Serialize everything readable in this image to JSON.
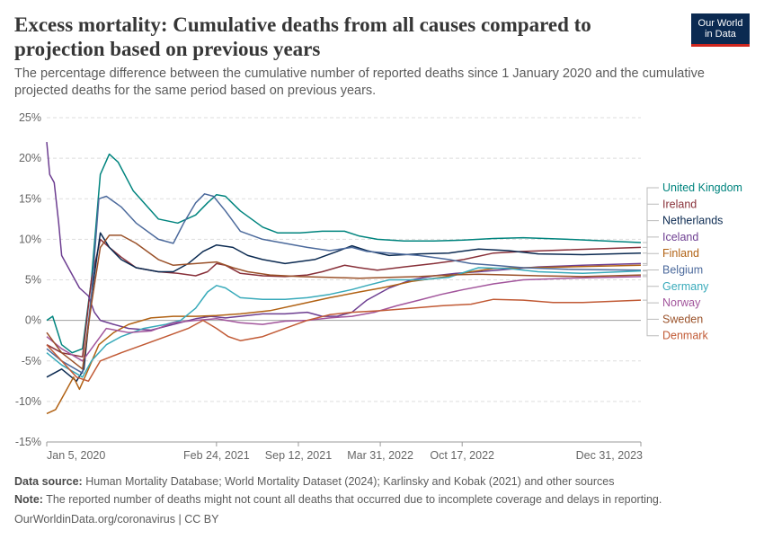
{
  "header": {
    "title": "Excess mortality: Cumulative deaths from all causes compared to projection based on previous years",
    "subtitle": "The percentage difference between the cumulative number of reported deaths since 1 January 2020 and the cumulative projected deaths for the same period based on previous years.",
    "logo_line1": "Our World",
    "logo_line2": "in Data",
    "brand_color": "#0b2a51",
    "accent_color": "#ce261e"
  },
  "footer": {
    "source_label": "Data source:",
    "source_text": "Human Mortality Database; World Mortality Dataset (2024); Karlinsky and Kobak (2021) and other sources",
    "note_label": "Note:",
    "note_text": "The reported number of deaths might not count all deaths that occurred due to incomplete coverage and delays in reporting.",
    "url_text": "OurWorldinData.org/coronavirus | CC BY"
  },
  "chart_data": {
    "type": "line",
    "title": "Excess mortality: Cumulative deaths from all causes compared to projection based on previous years",
    "ylabel": "",
    "xlabel": "",
    "ylim": [
      -15,
      25
    ],
    "y_ticks": [
      -15,
      -10,
      -5,
      0,
      5,
      10,
      15,
      20,
      25
    ],
    "y_tick_labels": [
      "-15%",
      "-10%",
      "-5%",
      "0%",
      "5%",
      "10%",
      "15%",
      "20%",
      "25%"
    ],
    "x_range": [
      "2020-01-05",
      "2023-12-31"
    ],
    "x_ticks": [
      {
        "label": "Jan 5, 2020",
        "t": 0.0
      },
      {
        "label": "Feb 24, 2021",
        "t": 1.14
      },
      {
        "label": "Sep 12, 2021",
        "t": 1.69
      },
      {
        "label": "Mar 31, 2022",
        "t": 2.24
      },
      {
        "label": "Oct 17, 2022",
        "t": 2.79
      },
      {
        "label": "Dec 31, 2023",
        "t": 3.99
      }
    ],
    "grid": true,
    "series": [
      {
        "name": "United Kingdom",
        "color": "#00847e",
        "points": [
          [
            0,
            0
          ],
          [
            0.04,
            0.5
          ],
          [
            0.1,
            -3
          ],
          [
            0.17,
            -4
          ],
          [
            0.24,
            -3.5
          ],
          [
            0.3,
            5
          ],
          [
            0.36,
            18
          ],
          [
            0.42,
            20.5
          ],
          [
            0.48,
            19.5
          ],
          [
            0.58,
            16
          ],
          [
            0.75,
            12.5
          ],
          [
            0.88,
            12
          ],
          [
            1.0,
            13
          ],
          [
            1.08,
            14.5
          ],
          [
            1.14,
            15.5
          ],
          [
            1.2,
            15.3
          ],
          [
            1.3,
            13.5
          ],
          [
            1.45,
            11.5
          ],
          [
            1.55,
            10.8
          ],
          [
            1.7,
            10.8
          ],
          [
            1.85,
            11
          ],
          [
            2.0,
            11
          ],
          [
            2.1,
            10.4
          ],
          [
            2.22,
            10
          ],
          [
            2.4,
            9.8
          ],
          [
            2.6,
            9.8
          ],
          [
            2.8,
            9.9
          ],
          [
            3.0,
            10.1
          ],
          [
            3.2,
            10.2
          ],
          [
            3.5,
            10
          ],
          [
            3.99,
            9.6
          ]
        ],
        "legend_value": 9.6
      },
      {
        "name": "Ireland",
        "color": "#883039",
        "points": [
          [
            0,
            -3
          ],
          [
            0.1,
            -4
          ],
          [
            0.24,
            -4.5
          ],
          [
            0.3,
            5
          ],
          [
            0.36,
            10
          ],
          [
            0.42,
            9
          ],
          [
            0.5,
            7.8
          ],
          [
            0.6,
            6.5
          ],
          [
            0.75,
            6
          ],
          [
            0.88,
            5.8
          ],
          [
            1.0,
            5.5
          ],
          [
            1.08,
            6
          ],
          [
            1.14,
            7
          ],
          [
            1.2,
            6.8
          ],
          [
            1.3,
            5.8
          ],
          [
            1.45,
            5.5
          ],
          [
            1.6,
            5.4
          ],
          [
            1.75,
            5.6
          ],
          [
            1.85,
            6
          ],
          [
            2.0,
            6.8
          ],
          [
            2.1,
            6.5
          ],
          [
            2.22,
            6.2
          ],
          [
            2.4,
            6.6
          ],
          [
            2.6,
            7
          ],
          [
            2.8,
            7.5
          ],
          [
            3.0,
            8.3
          ],
          [
            3.2,
            8.5
          ],
          [
            3.5,
            8.7
          ],
          [
            3.99,
            9.0
          ]
        ],
        "legend_value": 9.0
      },
      {
        "name": "Netherlands",
        "color": "#0b2a51",
        "points": [
          [
            0,
            -7
          ],
          [
            0.1,
            -6
          ],
          [
            0.2,
            -7.5
          ],
          [
            0.25,
            -6
          ],
          [
            0.3,
            3
          ],
          [
            0.36,
            10.8
          ],
          [
            0.42,
            9
          ],
          [
            0.5,
            7.5
          ],
          [
            0.6,
            6.5
          ],
          [
            0.75,
            6
          ],
          [
            0.85,
            6
          ],
          [
            0.95,
            7
          ],
          [
            1.05,
            8.5
          ],
          [
            1.14,
            9.3
          ],
          [
            1.25,
            9
          ],
          [
            1.35,
            8
          ],
          [
            1.45,
            7.5
          ],
          [
            1.6,
            7
          ],
          [
            1.8,
            7.5
          ],
          [
            1.95,
            8.5
          ],
          [
            2.05,
            9.2
          ],
          [
            2.15,
            8.6
          ],
          [
            2.3,
            8
          ],
          [
            2.5,
            8.2
          ],
          [
            2.7,
            8.3
          ],
          [
            2.9,
            8.8
          ],
          [
            3.1,
            8.6
          ],
          [
            3.3,
            8.2
          ],
          [
            3.6,
            8.1
          ],
          [
            3.99,
            8.3
          ]
        ],
        "legend_value": 8.3
      },
      {
        "name": "Iceland",
        "color": "#6d3e91",
        "points": [
          [
            0,
            22
          ],
          [
            0.02,
            18
          ],
          [
            0.05,
            17
          ],
          [
            0.08,
            12
          ],
          [
            0.1,
            8
          ],
          [
            0.16,
            6
          ],
          [
            0.22,
            4
          ],
          [
            0.28,
            3
          ],
          [
            0.32,
            1
          ],
          [
            0.36,
            0
          ],
          [
            0.45,
            -0.5
          ],
          [
            0.55,
            -1
          ],
          [
            0.7,
            -1.2
          ],
          [
            0.85,
            -0.5
          ],
          [
            1.0,
            0.2
          ],
          [
            1.1,
            0.5
          ],
          [
            1.2,
            0.3
          ],
          [
            1.3,
            0.5
          ],
          [
            1.45,
            0.8
          ],
          [
            1.6,
            0.8
          ],
          [
            1.75,
            1.0
          ],
          [
            1.85,
            0.5
          ],
          [
            1.95,
            0.5
          ],
          [
            2.05,
            1.0
          ],
          [
            2.15,
            2.5
          ],
          [
            2.3,
            4
          ],
          [
            2.45,
            5
          ],
          [
            2.6,
            5.5
          ],
          [
            2.75,
            5.8
          ],
          [
            2.9,
            6
          ],
          [
            3.1,
            6.3
          ],
          [
            3.3,
            6.6
          ],
          [
            3.6,
            6.8
          ],
          [
            3.99,
            7.0
          ]
        ],
        "legend_value": 7.0
      },
      {
        "name": "Finland",
        "color": "#b16214",
        "points": [
          [
            0,
            -11.5
          ],
          [
            0.06,
            -11
          ],
          [
            0.12,
            -9
          ],
          [
            0.18,
            -7
          ],
          [
            0.22,
            -8.5
          ],
          [
            0.28,
            -6
          ],
          [
            0.35,
            -3
          ],
          [
            0.45,
            -1.5
          ],
          [
            0.55,
            -0.5
          ],
          [
            0.7,
            0.3
          ],
          [
            0.85,
            0.5
          ],
          [
            1.0,
            0.5
          ],
          [
            1.14,
            0.6
          ],
          [
            1.3,
            0.8
          ],
          [
            1.5,
            1.2
          ],
          [
            1.7,
            2
          ],
          [
            1.9,
            2.8
          ],
          [
            2.1,
            3.5
          ],
          [
            2.25,
            4
          ],
          [
            2.45,
            4.8
          ],
          [
            2.65,
            5.3
          ],
          [
            2.85,
            6
          ],
          [
            3.0,
            6.4
          ],
          [
            3.2,
            6.5
          ],
          [
            3.5,
            6.6
          ],
          [
            3.99,
            6.8
          ]
        ],
        "legend_value": 6.8
      },
      {
        "name": "Belgium",
        "color": "#4c6a9c",
        "points": [
          [
            0,
            -3.5
          ],
          [
            0.1,
            -5
          ],
          [
            0.24,
            -6.5
          ],
          [
            0.3,
            3
          ],
          [
            0.35,
            15
          ],
          [
            0.4,
            15.3
          ],
          [
            0.5,
            14
          ],
          [
            0.6,
            12
          ],
          [
            0.75,
            10
          ],
          [
            0.85,
            9.5
          ],
          [
            0.92,
            12
          ],
          [
            1.0,
            14.5
          ],
          [
            1.06,
            15.6
          ],
          [
            1.12,
            15.3
          ],
          [
            1.2,
            13.5
          ],
          [
            1.3,
            11
          ],
          [
            1.45,
            10
          ],
          [
            1.6,
            9.5
          ],
          [
            1.75,
            9
          ],
          [
            1.9,
            8.6
          ],
          [
            2.05,
            9
          ],
          [
            2.15,
            8.5
          ],
          [
            2.3,
            8.3
          ],
          [
            2.5,
            8
          ],
          [
            2.7,
            7.5
          ],
          [
            2.85,
            7
          ],
          [
            3.0,
            6.8
          ],
          [
            3.2,
            6.5
          ],
          [
            3.5,
            6.3
          ],
          [
            3.99,
            6.2
          ]
        ],
        "legend_value": 6.2
      },
      {
        "name": "Germany",
        "color": "#38aaba",
        "points": [
          [
            0,
            -4
          ],
          [
            0.1,
            -5.5
          ],
          [
            0.24,
            -7
          ],
          [
            0.3,
            -5
          ],
          [
            0.4,
            -3
          ],
          [
            0.5,
            -2
          ],
          [
            0.65,
            -1
          ],
          [
            0.8,
            -0.5
          ],
          [
            0.9,
            0
          ],
          [
            1.0,
            1.5
          ],
          [
            1.08,
            3.5
          ],
          [
            1.14,
            4.3
          ],
          [
            1.2,
            4
          ],
          [
            1.3,
            2.8
          ],
          [
            1.45,
            2.6
          ],
          [
            1.6,
            2.6
          ],
          [
            1.75,
            2.8
          ],
          [
            1.9,
            3.2
          ],
          [
            2.05,
            3.8
          ],
          [
            2.15,
            4.3
          ],
          [
            2.3,
            5
          ],
          [
            2.5,
            5
          ],
          [
            2.7,
            5.3
          ],
          [
            2.9,
            6.5
          ],
          [
            3.1,
            6.4
          ],
          [
            3.3,
            6
          ],
          [
            3.6,
            5.8
          ],
          [
            3.99,
            6.1
          ]
        ],
        "legend_value": 6.1
      },
      {
        "name": "Norway",
        "color": "#a2559c",
        "points": [
          [
            0,
            -2
          ],
          [
            0.1,
            -3.5
          ],
          [
            0.24,
            -5
          ],
          [
            0.32,
            -3
          ],
          [
            0.4,
            -1
          ],
          [
            0.55,
            -1.5
          ],
          [
            0.7,
            -1.3
          ],
          [
            0.85,
            -0.3
          ],
          [
            1.0,
            0
          ],
          [
            1.14,
            0.2
          ],
          [
            1.3,
            -0.3
          ],
          [
            1.45,
            -0.5
          ],
          [
            1.6,
            -0.1
          ],
          [
            1.75,
            0
          ],
          [
            1.9,
            0.3
          ],
          [
            2.05,
            0.5
          ],
          [
            2.2,
            1.0
          ],
          [
            2.35,
            1.8
          ],
          [
            2.5,
            2.5
          ],
          [
            2.65,
            3.2
          ],
          [
            2.8,
            3.8
          ],
          [
            3.0,
            4.5
          ],
          [
            3.2,
            5
          ],
          [
            3.5,
            5.2
          ],
          [
            3.99,
            5.4
          ]
        ],
        "legend_value": 5.4
      },
      {
        "name": "Sweden",
        "color": "#9a5129",
        "points": [
          [
            0,
            -1.5
          ],
          [
            0.1,
            -4
          ],
          [
            0.24,
            -6
          ],
          [
            0.3,
            2
          ],
          [
            0.36,
            9
          ],
          [
            0.42,
            10.5
          ],
          [
            0.5,
            10.5
          ],
          [
            0.6,
            9.5
          ],
          [
            0.75,
            7.5
          ],
          [
            0.85,
            6.8
          ],
          [
            1.0,
            7
          ],
          [
            1.14,
            7.2
          ],
          [
            1.25,
            6.5
          ],
          [
            1.35,
            6
          ],
          [
            1.5,
            5.6
          ],
          [
            1.7,
            5.4
          ],
          [
            1.9,
            5.3
          ],
          [
            2.1,
            5.2
          ],
          [
            2.3,
            5.3
          ],
          [
            2.5,
            5.4
          ],
          [
            2.7,
            5.6
          ],
          [
            2.9,
            5.7
          ],
          [
            3.1,
            5.6
          ],
          [
            3.3,
            5.5
          ],
          [
            3.6,
            5.4
          ],
          [
            3.99,
            5.6
          ]
        ],
        "legend_value": 5.6
      },
      {
        "name": "Denmark",
        "color": "#c15a35",
        "points": [
          [
            0,
            -3
          ],
          [
            0.1,
            -5
          ],
          [
            0.2,
            -7
          ],
          [
            0.28,
            -7.5
          ],
          [
            0.36,
            -5
          ],
          [
            0.5,
            -4
          ],
          [
            0.65,
            -3
          ],
          [
            0.8,
            -2
          ],
          [
            0.95,
            -1
          ],
          [
            1.05,
            0
          ],
          [
            1.14,
            -1
          ],
          [
            1.22,
            -2
          ],
          [
            1.3,
            -2.5
          ],
          [
            1.45,
            -2
          ],
          [
            1.6,
            -1
          ],
          [
            1.75,
            0
          ],
          [
            1.9,
            0.7
          ],
          [
            2.05,
            1.0
          ],
          [
            2.25,
            1.2
          ],
          [
            2.45,
            1.5
          ],
          [
            2.65,
            1.8
          ],
          [
            2.85,
            2
          ],
          [
            3.0,
            2.6
          ],
          [
            3.2,
            2.5
          ],
          [
            3.4,
            2.2
          ],
          [
            3.6,
            2.2
          ],
          [
            3.99,
            2.5
          ]
        ],
        "legend_value": 2.5
      }
    ]
  }
}
